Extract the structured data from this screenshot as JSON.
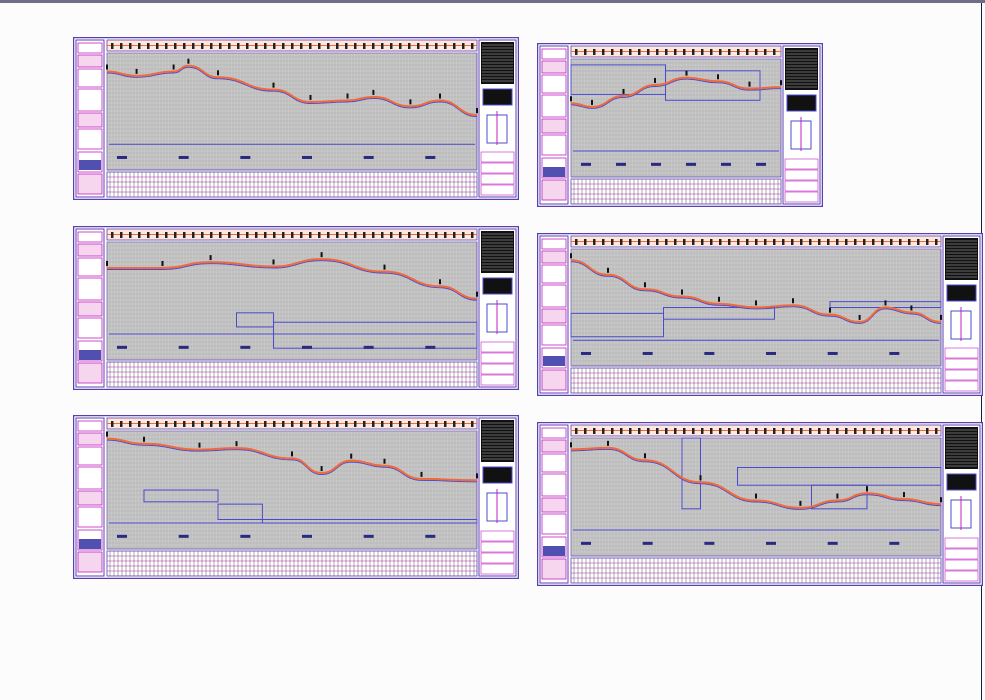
{
  "viewer": {
    "background": "#fcfcfc"
  },
  "colors": {
    "border": "#5b3fb0",
    "magenta": "#c020c0",
    "grid_bg": "#c9c9c9",
    "grid_line": "#a9a9a9",
    "ground_line": "#f06a3a",
    "design_line": "#4b4bd0",
    "strip_bg": "#fde8e0",
    "table_dark": "#111111"
  },
  "sheets": [
    {
      "id": "sheet-1"
    },
    {
      "id": "sheet-2"
    },
    {
      "id": "sheet-3"
    },
    {
      "id": "sheet-4"
    },
    {
      "id": "sheet-5"
    },
    {
      "id": "sheet-6"
    }
  ]
}
